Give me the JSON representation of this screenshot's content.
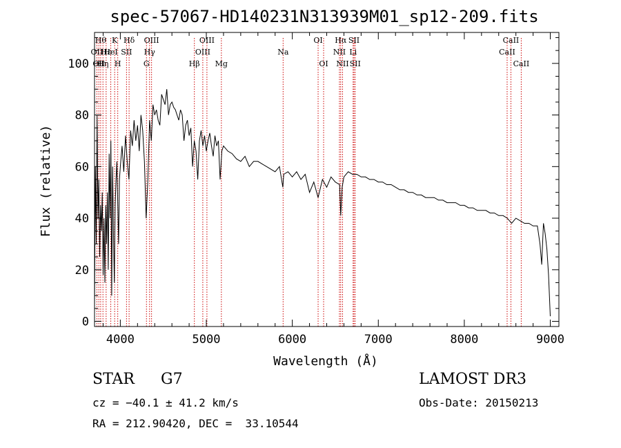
{
  "chart_data": {
    "type": "line",
    "title": "spec-57067-HD140231N313939M01_sp12-209.fits",
    "xlabel": "Wavelength (Å)",
    "ylabel": "Flux (relative)",
    "xlim": [
      3700,
      9100
    ],
    "ylim": [
      -2,
      112
    ],
    "xticks": [
      4000,
      5000,
      6000,
      7000,
      8000,
      9000
    ],
    "yticks": [
      0,
      20,
      40,
      60,
      80,
      100
    ],
    "grid": false,
    "series": [
      {
        "name": "spectrum",
        "x": [
          3700,
          3710,
          3720,
          3730,
          3740,
          3750,
          3760,
          3770,
          3780,
          3790,
          3800,
          3810,
          3820,
          3830,
          3840,
          3850,
          3860,
          3870,
          3880,
          3890,
          3900,
          3910,
          3920,
          3930,
          3940,
          3950,
          3960,
          3970,
          3980,
          3990,
          4000,
          4020,
          4040,
          4060,
          4080,
          4100,
          4120,
          4140,
          4160,
          4180,
          4200,
          4220,
          4240,
          4260,
          4280,
          4300,
          4320,
          4340,
          4360,
          4380,
          4400,
          4420,
          4440,
          4460,
          4480,
          4500,
          4520,
          4540,
          4560,
          4580,
          4600,
          4620,
          4640,
          4660,
          4680,
          4700,
          4720,
          4740,
          4760,
          4780,
          4800,
          4820,
          4840,
          4860,
          4880,
          4900,
          4920,
          4940,
          4960,
          4980,
          5000,
          5020,
          5040,
          5060,
          5080,
          5100,
          5120,
          5140,
          5160,
          5170,
          5180,
          5200,
          5250,
          5300,
          5350,
          5400,
          5450,
          5500,
          5550,
          5600,
          5650,
          5700,
          5750,
          5800,
          5850,
          5890,
          5900,
          5950,
          6000,
          6050,
          6100,
          6150,
          6200,
          6250,
          6300,
          6350,
          6400,
          6450,
          6500,
          6550,
          6563,
          6580,
          6600,
          6650,
          6700,
          6750,
          6800,
          6850,
          6900,
          6950,
          7000,
          7050,
          7100,
          7150,
          7200,
          7250,
          7300,
          7350,
          7400,
          7450,
          7500,
          7550,
          7600,
          7650,
          7700,
          7750,
          7800,
          7850,
          7900,
          7950,
          8000,
          8050,
          8100,
          8150,
          8200,
          8250,
          8300,
          8350,
          8400,
          8450,
          8500,
          8550,
          8600,
          8650,
          8700,
          8750,
          8800,
          8850,
          8880,
          8900,
          8920,
          8940,
          8960,
          8980,
          9000
        ],
        "y": [
          5,
          60,
          30,
          80,
          40,
          55,
          25,
          45,
          35,
          50,
          18,
          40,
          15,
          45,
          30,
          50,
          20,
          65,
          40,
          70,
          10,
          60,
          35,
          15,
          45,
          55,
          62,
          45,
          30,
          55,
          60,
          68,
          58,
          72,
          62,
          55,
          74,
          68,
          78,
          70,
          76,
          66,
          80,
          74,
          62,
          40,
          55,
          78,
          70,
          84,
          80,
          82,
          78,
          76,
          88,
          86,
          84,
          90,
          80,
          84,
          85,
          83,
          82,
          80,
          78,
          82,
          80,
          70,
          76,
          78,
          72,
          75,
          60,
          70,
          66,
          55,
          70,
          74,
          68,
          72,
          66,
          70,
          73,
          68,
          64,
          72,
          68,
          70,
          55,
          60,
          66,
          68,
          66,
          65,
          63,
          62,
          64,
          60,
          62,
          62,
          61,
          60,
          59,
          58,
          60,
          52,
          57,
          58,
          56,
          58,
          55,
          57,
          50,
          54,
          48,
          55,
          52,
          56,
          54,
          53,
          41,
          52,
          56,
          58,
          57,
          57,
          56,
          56,
          55,
          55,
          54,
          54,
          53,
          53,
          52,
          51,
          51,
          50,
          50,
          49,
          49,
          48,
          48,
          48,
          47,
          47,
          46,
          46,
          46,
          45,
          45,
          44,
          44,
          43,
          43,
          43,
          42,
          42,
          41,
          41,
          40,
          38,
          40,
          39,
          38,
          38,
          37,
          37,
          30,
          22,
          38,
          34,
          28,
          18,
          2
        ]
      }
    ],
    "lines": [
      {
        "x": 3727,
        "label": "OII",
        "row": 2
      },
      {
        "x": 3750,
        "label": "OII",
        "row": 3
      },
      {
        "x": 3771,
        "label": "Hθ",
        "row": 1
      },
      {
        "x": 3798,
        "label": "Hη",
        "row": 3
      },
      {
        "x": 3835,
        "label": "Hε",
        "row": 2
      },
      {
        "x": 3889,
        "label": "HeI",
        "row": 2
      },
      {
        "x": 3934,
        "label": "K",
        "row": 1
      },
      {
        "x": 3970,
        "label": "H",
        "row": 3
      },
      {
        "x": 4072,
        "label": "SII",
        "row": 2
      },
      {
        "x": 4102,
        "label": "Hδ",
        "row": 1
      },
      {
        "x": 4304,
        "label": "G",
        "row": 3
      },
      {
        "x": 4340,
        "label": "Hγ",
        "row": 2
      },
      {
        "x": 4363,
        "label": "OIII",
        "row": 1
      },
      {
        "x": 4861,
        "label": "Hβ",
        "row": 3
      },
      {
        "x": 4959,
        "label": "OIII",
        "row": 2
      },
      {
        "x": 5007,
        "label": "OIII",
        "row": 1
      },
      {
        "x": 5175,
        "label": "Mg",
        "row": 3
      },
      {
        "x": 5893,
        "label": "Na",
        "row": 2
      },
      {
        "x": 6300,
        "label": "OI",
        "row": 1
      },
      {
        "x": 6364,
        "label": "OI",
        "row": 3
      },
      {
        "x": 6548,
        "label": "NII",
        "row": 2
      },
      {
        "x": 6563,
        "label": "Hα",
        "row": 1
      },
      {
        "x": 6584,
        "label": "NII",
        "row": 3
      },
      {
        "x": 6707,
        "label": "Li",
        "row": 2
      },
      {
        "x": 6717,
        "label": "SII",
        "row": 1
      },
      {
        "x": 6731,
        "label": "SII",
        "row": 3
      },
      {
        "x": 8498,
        "label": "CaII",
        "row": 2
      },
      {
        "x": 8542,
        "label": "CaII",
        "row": 1
      },
      {
        "x": 8662,
        "label": "CaII",
        "row": 3
      }
    ]
  },
  "info": {
    "class_label": "STAR",
    "subclass": "G7",
    "redshift": "cz = −40.1 ± 41.2 km/s",
    "coords": "RA = 212.90420, DEC =  33.10544",
    "survey": "LAMOST DR3",
    "obs_date": "Obs-Date: 20150213"
  },
  "colors": {
    "spectrum": "#000000",
    "line_marker": "#cc0000",
    "axes": "#000000"
  }
}
